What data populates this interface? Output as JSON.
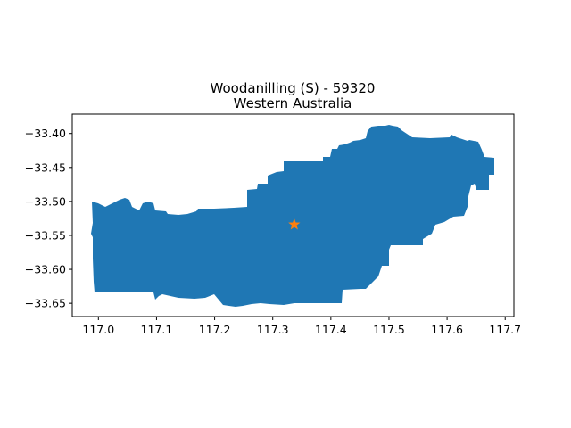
{
  "title": {
    "line1": "Woodanilling (S) - 59320",
    "line2": "Western Australia"
  },
  "colors": {
    "region_fill": "#1f77b4",
    "marker": "#ff7f0e"
  },
  "marker": {
    "shape": "star",
    "lon": 117.337,
    "lat": -33.534
  },
  "map_data": {
    "type": "map",
    "xlim": [
      116.955,
      117.715
    ],
    "ylim": [
      -33.6695,
      -33.3715
    ],
    "xticks": [
      117.0,
      117.1,
      117.2,
      117.3,
      117.4,
      117.5,
      117.6,
      117.7
    ],
    "xtick_labels": [
      "117.0",
      "117.1",
      "117.2",
      "117.3",
      "117.4",
      "117.5",
      "117.6",
      "117.7"
    ],
    "yticks": [
      -33.4,
      -33.45,
      -33.5,
      -33.55,
      -33.6,
      -33.65
    ],
    "ytick_labels": [
      "−33.40",
      "−33.45",
      "−33.50",
      "−33.55",
      "−33.60",
      "−33.65"
    ],
    "grid": false
  }
}
